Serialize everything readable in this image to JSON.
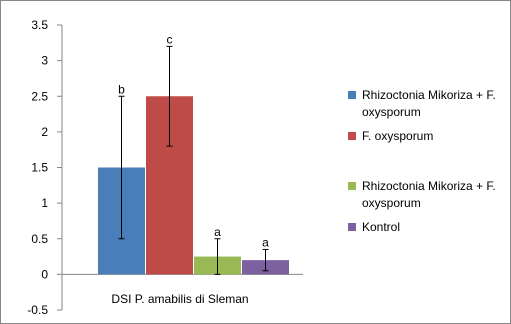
{
  "chart_data": {
    "type": "bar",
    "categories": [
      "DSI P. amabilis di Sleman"
    ],
    "series": [
      {
        "name": "Rhizoctonia Mikoriza + F. oxysporum",
        "values": [
          1.5
        ],
        "error": [
          1.0
        ],
        "label": "b",
        "color": "#4a7ebb"
      },
      {
        "name": "F. oxysporum",
        "values": [
          2.5
        ],
        "error": [
          0.7
        ],
        "label": "c",
        "color": "#be4b48"
      },
      {
        "name": "Rhizoctonia Mikoriza + F. oxysporum",
        "values": [
          0.25
        ],
        "error": [
          0.25
        ],
        "label": "a",
        "color": "#98b954"
      },
      {
        "name": "Kontrol",
        "values": [
          0.2
        ],
        "error": [
          0.15
        ],
        "label": "a",
        "color": "#7d60a0"
      }
    ],
    "yticks": [
      "-0.5",
      "0",
      "0.5",
      "1",
      "1.5",
      "2",
      "2.5",
      "3",
      "3.5"
    ],
    "ylim": [
      -0.5,
      3.5
    ],
    "grid": false,
    "legend_position": "right"
  }
}
